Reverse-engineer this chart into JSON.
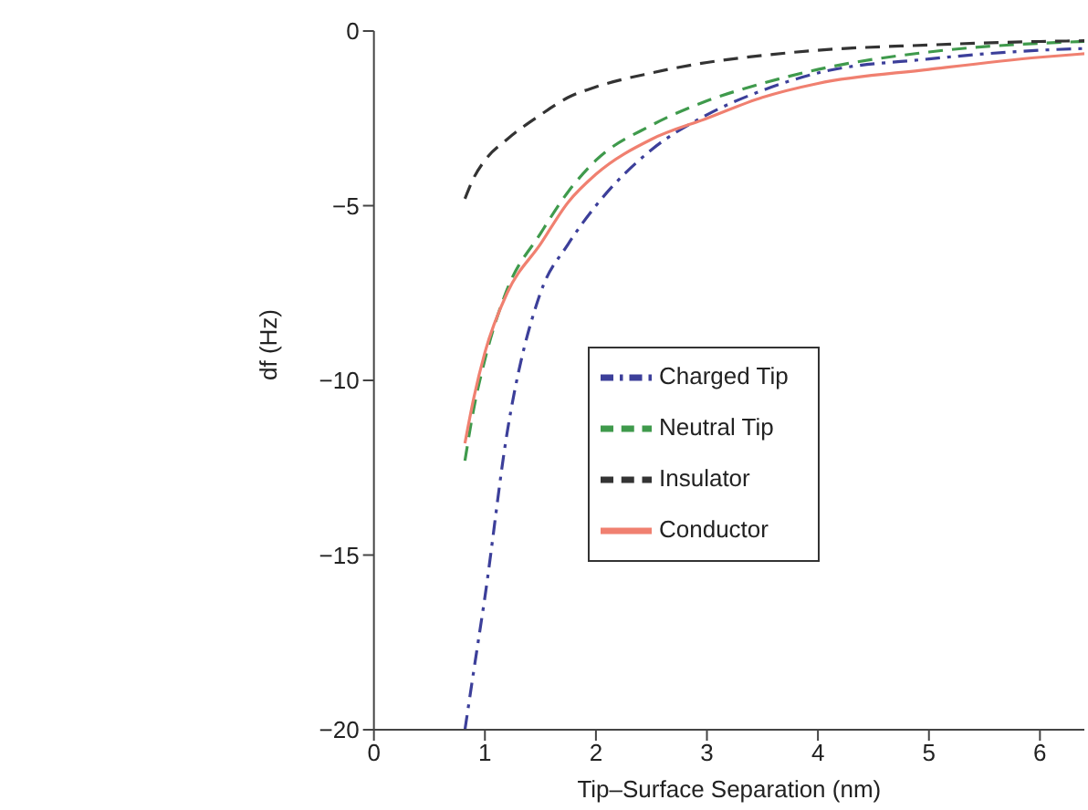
{
  "chart_data": {
    "type": "line",
    "xlabel": "Tip–Surface Separation (nm)",
    "ylabel": "df (Hz)",
    "xlim": [
      0,
      6.4
    ],
    "ylim": [
      -20,
      0
    ],
    "xticks": [
      0,
      1,
      2,
      3,
      4,
      5,
      6
    ],
    "yticks": [
      -20,
      -15,
      -10,
      -5,
      0
    ],
    "legend": "right",
    "marker": "none",
    "series": [
      {
        "name": "Charged Tip",
        "color": "#3c3f9a",
        "line_style": "dashdot",
        "x": [
          0.82,
          0.9,
          1,
          1.2,
          1.5,
          1.75,
          2,
          2.5,
          3,
          3.5,
          4,
          5,
          6,
          6.4
        ],
        "values": [
          -20,
          -18.3,
          -16.2,
          -11.5,
          -7.5,
          -6.1,
          -5,
          -3.4,
          -2.4,
          -1.7,
          -1.2,
          -0.8,
          -0.55,
          -0.5
        ]
      },
      {
        "name": "Neutral Tip",
        "color": "#3f9a4c",
        "line_style": "dashed",
        "x": [
          0.82,
          0.9,
          1,
          1.2,
          1.5,
          1.75,
          2,
          2.5,
          3,
          3.5,
          4,
          5,
          6,
          6.4
        ],
        "values": [
          -12.3,
          -10.8,
          -9.4,
          -7.4,
          -5.8,
          -4.6,
          -3.7,
          -2.7,
          -2,
          -1.5,
          -1.1,
          -0.6,
          -0.35,
          -0.3
        ]
      },
      {
        "name": "Insulator",
        "color": "#333333",
        "line_style": "dashed",
        "x": [
          0.82,
          0.9,
          1,
          1.2,
          1.5,
          1.75,
          2,
          2.5,
          3,
          3.5,
          4,
          5,
          6,
          6.4
        ],
        "values": [
          -4.8,
          -4.2,
          -3.7,
          -3.1,
          -2.4,
          -1.9,
          -1.6,
          -1.2,
          -0.9,
          -0.7,
          -0.55,
          -0.4,
          -0.3,
          -0.28
        ]
      },
      {
        "name": "Conductor",
        "color": "#f08070",
        "line_style": "solid",
        "x": [
          0.82,
          0.9,
          1,
          1.2,
          1.5,
          1.75,
          2,
          2.5,
          3,
          3.5,
          4,
          5,
          6,
          6.4
        ],
        "values": [
          -11.8,
          -10.5,
          -9.2,
          -7.5,
          -6.1,
          -4.9,
          -4.1,
          -3.1,
          -2.5,
          -1.9,
          -1.5,
          -1.1,
          -0.75,
          -0.65
        ]
      }
    ]
  }
}
